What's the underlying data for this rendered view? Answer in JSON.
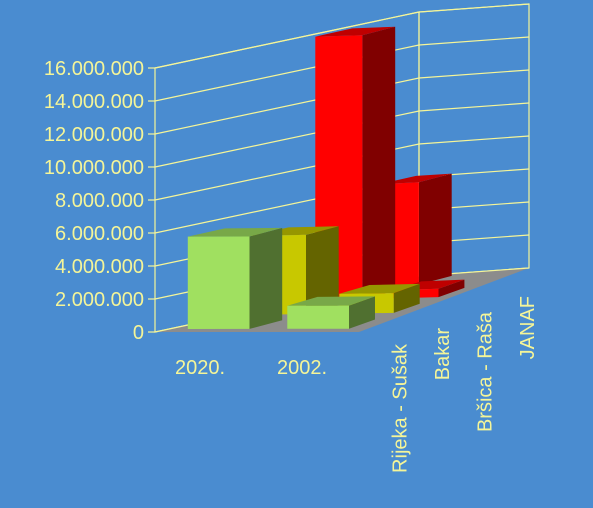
{
  "chart_data": {
    "type": "bar",
    "three_d": true,
    "ylim": [
      0,
      16000000
    ],
    "y_ticks": [
      "0",
      "2.000.000",
      "4.000.000",
      "6.000.000",
      "8.000.000",
      "10.000.000",
      "12.000.000",
      "14.000.000",
      "16.000.000"
    ],
    "grid": true,
    "legend": "none",
    "categories": [
      "2020.",
      "2002."
    ],
    "depth_categories": [
      "Rijeka - Sušak",
      "Bakar",
      "Bršica - Raša",
      "JANAF"
    ],
    "series": [
      {
        "name": "Rijeka - Sušak",
        "values": [
          5600000,
          1400000
        ],
        "color": "#a0e060"
      },
      {
        "name": "Bakar",
        "values": [
          4800000,
          1200000
        ],
        "color": "#c8c800"
      },
      {
        "name": "Bršica - Raša",
        "values": [
          16000000,
          500000
        ],
        "color": "#ff0000"
      },
      {
        "name": "JANAF",
        "values": [
          6200000,
          0
        ],
        "color": "#ff0000"
      }
    ],
    "colors": {
      "label": "#f5f598",
      "grid": "#f5f598",
      "floor": "#8c8c8c",
      "background": "#4a8cd0"
    }
  }
}
